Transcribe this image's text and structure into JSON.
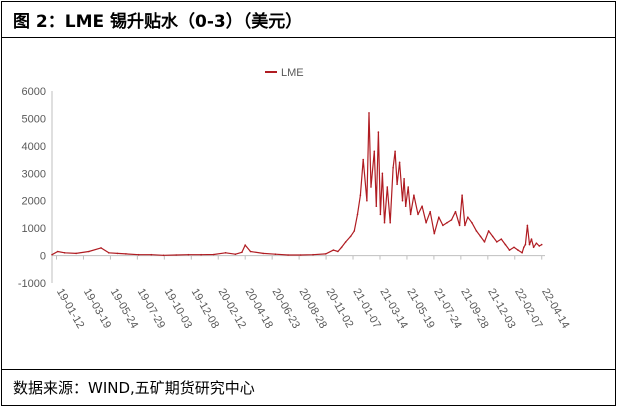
{
  "header": {
    "title": "图 2：LME 锡升贴水（0-3）（美元）"
  },
  "footer": {
    "source": "数据来源：WIND,五矿期货研究中心"
  },
  "colors": {
    "series": "#b01c22",
    "axis": "#bfbfbf",
    "text": "#595959",
    "border": "#000000"
  },
  "chart_data": {
    "type": "line",
    "title": "",
    "xlabel": "",
    "ylabel": "",
    "ylim": [
      -1000,
      6000
    ],
    "yticks": [
      "6000",
      "5000",
      "4000",
      "3000",
      "2000",
      "1000",
      "0",
      "-1000"
    ],
    "xticks": [
      "19-01-12",
      "19-03-19",
      "19-05-24",
      "19-07-29",
      "19-10-03",
      "19-12-08",
      "20-02-12",
      "20-04-18",
      "20-06-23",
      "20-08-28",
      "20-11-02",
      "21-01-07",
      "21-03-14",
      "21-05-19",
      "21-07-24",
      "21-09-28",
      "21-12-03",
      "22-02-07",
      "22-04-14"
    ],
    "legend": {
      "position": "top-center"
    },
    "grid": false,
    "series": [
      {
        "name": "LME",
        "color": "#b01c22",
        "x": [
          "2019-01-01",
          "2019-01-15",
          "2019-02-01",
          "2019-03-01",
          "2019-04-01",
          "2019-05-01",
          "2019-05-20",
          "2019-06-10",
          "2019-07-01",
          "2019-08-01",
          "2019-09-01",
          "2019-10-01",
          "2019-11-01",
          "2019-12-01",
          "2020-01-01",
          "2020-02-01",
          "2020-03-01",
          "2020-03-25",
          "2020-04-10",
          "2020-04-18",
          "2020-05-01",
          "2020-06-01",
          "2020-07-01",
          "2020-08-01",
          "2020-09-01",
          "2020-10-01",
          "2020-11-01",
          "2020-11-20",
          "2020-12-01",
          "2020-12-10",
          "2020-12-20",
          "2021-01-01",
          "2021-01-10",
          "2021-01-18",
          "2021-01-25",
          "2021-02-01",
          "2021-02-10",
          "2021-02-15",
          "2021-02-20",
          "2021-02-28",
          "2021-03-05",
          "2021-03-10",
          "2021-03-15",
          "2021-03-20",
          "2021-03-25",
          "2021-04-01",
          "2021-04-08",
          "2021-04-15",
          "2021-04-20",
          "2021-04-25",
          "2021-05-01",
          "2021-05-08",
          "2021-05-12",
          "2021-05-16",
          "2021-05-22",
          "2021-05-28",
          "2021-06-05",
          "2021-06-15",
          "2021-06-25",
          "2021-07-05",
          "2021-07-15",
          "2021-07-25",
          "2021-08-05",
          "2021-08-15",
          "2021-08-25",
          "2021-09-05",
          "2021-09-15",
          "2021-09-25",
          "2021-10-01",
          "2021-10-08",
          "2021-10-15",
          "2021-10-25",
          "2021-11-05",
          "2021-11-15",
          "2021-11-25",
          "2021-12-05",
          "2021-12-15",
          "2021-12-25",
          "2022-01-05",
          "2022-01-15",
          "2022-01-25",
          "2022-02-05",
          "2022-02-15",
          "2022-02-25",
          "2022-03-01",
          "2022-03-05",
          "2022-03-10",
          "2022-03-15",
          "2022-03-20",
          "2022-03-25",
          "2022-04-01",
          "2022-04-08",
          "2022-04-14"
        ],
        "values": [
          30,
          150,
          100,
          80,
          150,
          280,
          100,
          80,
          60,
          30,
          30,
          10,
          20,
          30,
          30,
          40,
          100,
          50,
          120,
          380,
          150,
          80,
          50,
          20,
          20,
          30,
          60,
          200,
          150,
          300,
          500,
          700,
          900,
          1500,
          2200,
          3500,
          2000,
          5200,
          2500,
          3800,
          1800,
          4500,
          1500,
          3000,
          1200,
          2500,
          1200,
          3200,
          3800,
          2600,
          3400,
          2000,
          2800,
          1800,
          2500,
          1500,
          2200,
          1500,
          1800,
          1200,
          1600,
          800,
          1400,
          1100,
          1200,
          1300,
          1600,
          1100,
          2200,
          1100,
          1400,
          1200,
          900,
          700,
          500,
          900,
          700,
          500,
          600,
          400,
          200,
          300,
          200,
          100,
          300,
          400,
          1100,
          400,
          600,
          300,
          450,
          350,
          400
        ]
      }
    ]
  }
}
